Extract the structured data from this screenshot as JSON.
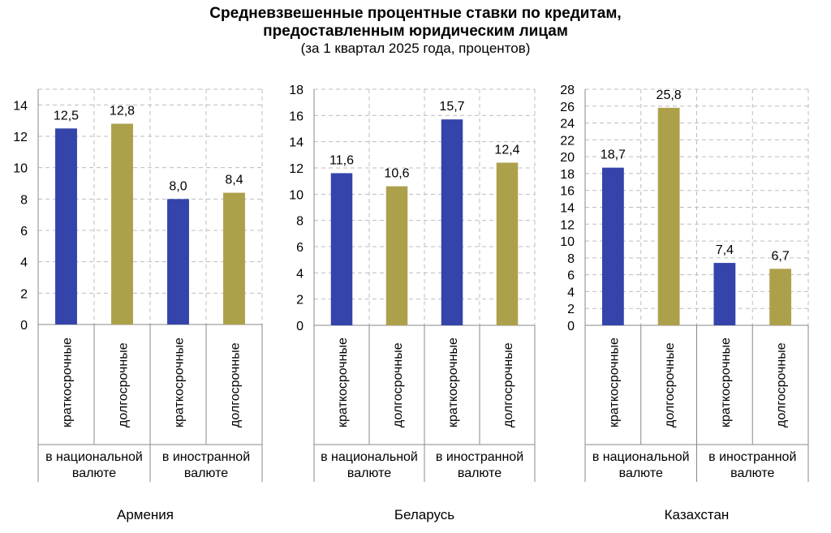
{
  "title": {
    "line1": "Средневзвешенные процентные ставки по кредитам,",
    "line2": "предоставленным юридическим лицам",
    "subtitle": "(за 1 квартал 2025 года, процентов)"
  },
  "colors": {
    "short": "#3444AA",
    "long": "#ADA04A",
    "grid": "#BDBDBD"
  },
  "chart_data": [
    {
      "type": "bar",
      "country": "Армения",
      "categories": [
        "краткосрочные",
        "долгосрочные",
        "краткосрочные",
        "долгосрочные"
      ],
      "groups": [
        "в национальной валюте",
        "в иностранной валюте"
      ],
      "values": [
        12.5,
        12.8,
        8.0,
        8.4
      ],
      "value_labels": [
        "12,5",
        "12,8",
        "8,0",
        "8,4"
      ],
      "ylim": [
        0,
        14
      ],
      "yticks": [
        0,
        2,
        4,
        6,
        8,
        10,
        12,
        14
      ],
      "grid": true
    },
    {
      "type": "bar",
      "country": "Беларусь",
      "categories": [
        "краткосрочные",
        "долгосрочные",
        "краткосрочные",
        "долгосрочные"
      ],
      "groups": [
        "в национальной валюте",
        "в иностранной валюте"
      ],
      "values": [
        11.6,
        10.6,
        15.7,
        12.4
      ],
      "value_labels": [
        "11,6",
        "10,6",
        "15,7",
        "12,4"
      ],
      "ylim": [
        0,
        18
      ],
      "yticks": [
        0,
        2,
        4,
        6,
        8,
        10,
        12,
        14,
        16,
        18
      ],
      "grid": true
    },
    {
      "type": "bar",
      "country": "Казахстан",
      "categories": [
        "краткосрочные",
        "долгосрочные",
        "краткосрочные",
        "долгосрочные"
      ],
      "groups": [
        "в национальной валюте",
        "в иностранной валюте"
      ],
      "values": [
        18.7,
        25.8,
        7.4,
        6.7
      ],
      "value_labels": [
        "18,7",
        "25,8",
        "7,4",
        "6,7"
      ],
      "ylim": [
        0,
        28
      ],
      "yticks": [
        0,
        2,
        4,
        6,
        8,
        10,
        12,
        14,
        16,
        18,
        20,
        22,
        24,
        26,
        28
      ],
      "grid": true
    }
  ]
}
